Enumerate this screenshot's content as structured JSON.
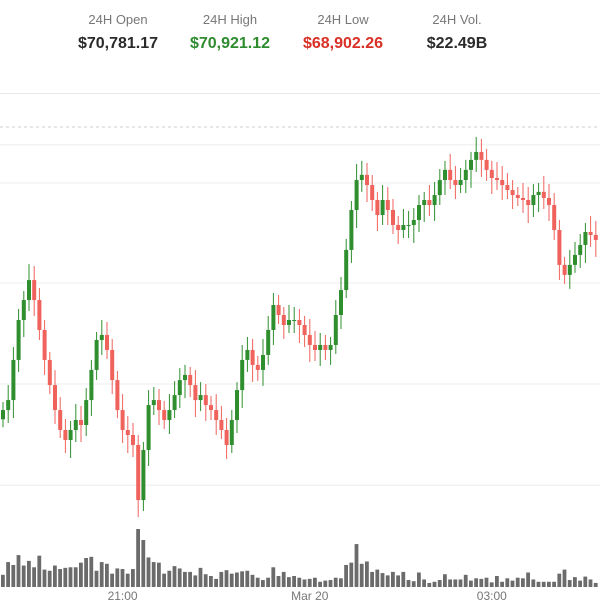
{
  "stats": [
    {
      "label": "24H Open",
      "value": "$70,781.17",
      "color": "#2a2a2a"
    },
    {
      "label": "24H High",
      "value": "$70,921.12",
      "color": "#2e8b2e"
    },
    {
      "label": "24H Low",
      "value": "$68,902.26",
      "color": "#d93025"
    },
    {
      "label": "24H Vol.",
      "value": "$22.49B",
      "color": "#2a2a2a"
    }
  ],
  "chart_data": {
    "type": "candlestick",
    "ylim": [
      68900,
      71175
    ],
    "gridlines": [
      70932,
      70726,
      70185,
      69639,
      69092
    ],
    "reference_line": 71029,
    "x_tick_labels": [
      {
        "label": "21:00",
        "index": 23
      },
      {
        "label": "Mar 20",
        "index": 59
      },
      {
        "label": "03:00",
        "index": 94
      }
    ],
    "colors": {
      "up": "#2f8f2f",
      "down": "#f0625c",
      "volume": "#6b6b6b",
      "grid": "#ececec"
    },
    "closes": [
      69498,
      69552,
      69769,
      69985,
      70093,
      70201,
      70093,
      69931,
      69769,
      69633,
      69498,
      69390,
      69336,
      69390,
      69444,
      69417,
      69552,
      69715,
      69877,
      69904,
      69823,
      69660,
      69498,
      69390,
      69363,
      69309,
      69011,
      69282,
      69525,
      69552,
      69498,
      69444,
      69498,
      69579,
      69660,
      69688,
      69633,
      69552,
      69579,
      69525,
      69498,
      69444,
      69390,
      69309,
      69444,
      69606,
      69769,
      69823,
      69742,
      69715,
      69796,
      69931,
      70066,
      70012,
      69958,
      69985,
      69985,
      69958,
      69904,
      69850,
      69823,
      69850,
      69823,
      69850,
      70012,
      70147,
      70364,
      70580,
      70742,
      70770,
      70715,
      70634,
      70553,
      70634,
      70580,
      70499,
      70472,
      70499,
      70499,
      70526,
      70607,
      70634,
      70607,
      70661,
      70742,
      70797,
      70742,
      70715,
      70742,
      70797,
      70851,
      70894,
      70851,
      70797,
      70753,
      70742,
      70715,
      70688,
      70661,
      70645,
      70634,
      70607,
      70661,
      70678,
      70645,
      70607,
      70472,
      70283,
      70229,
      70283,
      70337,
      70391,
      70461,
      70445,
      70418
    ],
    "volumes": [
      21,
      43,
      38,
      55,
      37,
      45,
      34,
      54,
      30,
      28,
      37,
      31,
      33,
      34,
      34,
      42,
      50,
      52,
      28,
      43,
      40,
      23,
      32,
      31,
      23,
      31,
      100,
      81,
      51,
      43,
      42,
      23,
      28,
      36,
      32,
      26,
      26,
      20,
      33,
      22,
      19,
      14,
      26,
      29,
      23,
      25,
      27,
      28,
      21,
      16,
      12,
      16,
      34,
      19,
      26,
      17,
      19,
      16,
      13,
      14,
      16,
      9,
      11,
      12,
      16,
      15,
      38,
      42,
      74,
      40,
      44,
      26,
      30,
      24,
      20,
      26,
      20,
      26,
      12,
      10,
      25,
      13,
      7,
      9,
      12,
      22,
      13,
      13,
      13,
      21,
      11,
      15,
      14,
      16,
      8,
      19,
      9,
      15,
      11,
      16,
      15,
      25,
      13,
      9,
      9,
      9,
      9,
      23,
      30,
      12,
      17,
      11,
      18,
      13,
      7
    ]
  }
}
